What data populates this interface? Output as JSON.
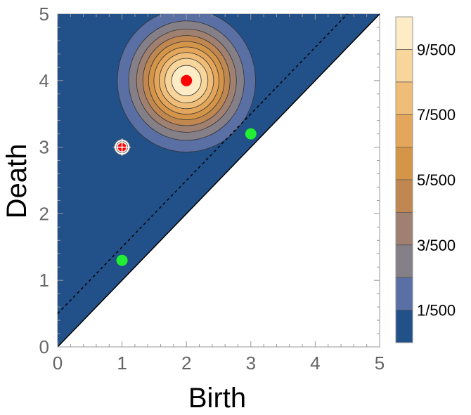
{
  "chart_data": {
    "type": "contour",
    "xlabel": "Birth",
    "ylabel": "Death",
    "xlim": [
      0,
      5
    ],
    "ylim": [
      0,
      5
    ],
    "x_ticks": [
      "0",
      "1",
      "2",
      "3",
      "4",
      "5"
    ],
    "y_ticks": [
      "0",
      "1",
      "2",
      "3",
      "4",
      "5"
    ],
    "diagonal": {
      "from": [
        0,
        0
      ],
      "to": [
        5,
        5
      ]
    },
    "dashed_line": {
      "from": [
        0,
        0.5
      ],
      "to": [
        4.5,
        5
      ]
    },
    "fill_color": "#225088",
    "contour_peak": {
      "x": 2,
      "y": 4,
      "sigma": 0.5,
      "max": 0.02
    },
    "contour_levels": [
      0.002,
      0.004,
      0.006,
      0.008,
      0.01,
      0.012,
      0.014,
      0.016,
      0.018
    ],
    "contour_colors": [
      "#5a6fa4",
      "#857f88",
      "#a08070",
      "#c08850",
      "#d49548",
      "#e4a65a",
      "#efbd77",
      "#f7d59b",
      "#fdecc5",
      "#ffffff"
    ],
    "points": [
      {
        "x": 2,
        "y": 4,
        "color": "#ff0000",
        "marker": "dot"
      },
      {
        "x": 1,
        "y": 3,
        "color": "#ff0000",
        "marker": "target"
      },
      {
        "x": 3,
        "y": 3.2,
        "color": "#22ee33",
        "marker": "dot"
      },
      {
        "x": 1,
        "y": 1.3,
        "color": "#22ee33",
        "marker": "dot"
      }
    ],
    "colorbar": {
      "range": [
        0,
        0.02
      ],
      "labels": [
        "1/500",
        "3/500",
        "5/500",
        "7/500",
        "9/500"
      ],
      "bands": [
        "#225088",
        "#5a6fa4",
        "#857f88",
        "#a08070",
        "#c08850",
        "#d49548",
        "#e4a65a",
        "#efbd77",
        "#f7d59b",
        "#fdecc5"
      ]
    }
  }
}
